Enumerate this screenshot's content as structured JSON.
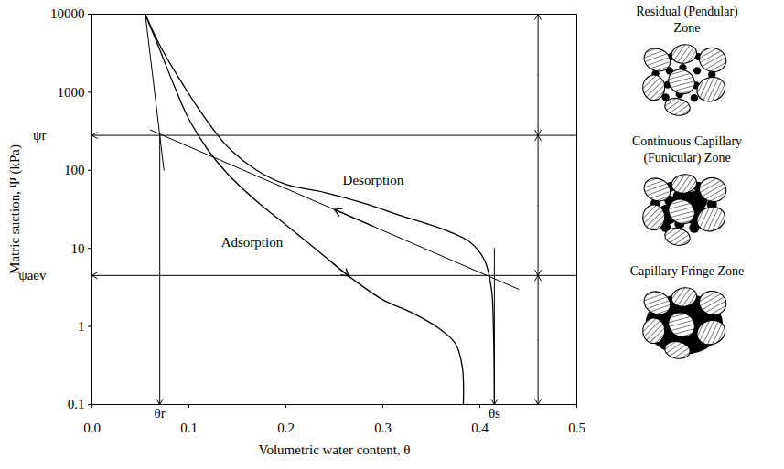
{
  "chart_data": {
    "type": "line",
    "xlabel": "Volumetric water content, θ",
    "ylabel": "Matric suction, Ψ (kPa)",
    "xlim": [
      0,
      0.5
    ],
    "ylim": [
      0.1,
      10000
    ],
    "xticks": [
      {
        "value": 0,
        "label": "0.0"
      },
      0.1,
      0.2,
      0.3,
      0.4,
      0.5
    ],
    "yticks": [
      0.1,
      1,
      10,
      100,
      1000,
      10000
    ],
    "log": "y",
    "grid": false,
    "series": [
      {
        "name": "Desorption",
        "color": "#000000",
        "x": [
          0.415,
          0.414,
          0.412,
          0.405,
          0.39,
          0.36,
          0.32,
          0.28,
          0.24,
          0.2,
          0.17,
          0.14,
          0.115,
          0.09,
          0.07,
          0.055
        ],
        "values": [
          0.1,
          1,
          3,
          7,
          12,
          18,
          26,
          38,
          52,
          66,
          100,
          200,
          500,
          1500,
          4000,
          10000
        ],
        "label_x": 0.29,
        "label_y": 75,
        "arrow_from": [
          0.29,
          19.2
        ],
        "arrow_to": [
          0.25,
          31.5
        ]
      },
      {
        "name": "Adsorption",
        "color": "#000000",
        "x": [
          0.383,
          0.382,
          0.375,
          0.355,
          0.33,
          0.3,
          0.265,
          0.23,
          0.2,
          0.17,
          0.14,
          0.12,
          0.1,
          0.085,
          0.07,
          0.055
        ],
        "values": [
          0.1,
          0.3,
          0.6,
          1,
          1.5,
          2.2,
          4.4,
          10,
          20,
          40,
          90,
          180,
          450,
          1200,
          3500,
          10000
        ],
        "label_x": 0.165,
        "label_y": 12,
        "arrow_from": [
          0.245,
          7.0
        ],
        "arrow_to": [
          0.265,
          4.4
        ]
      }
    ],
    "tangent_lines": [
      {
        "x": [
          0.06,
          0.44
        ],
        "values": [
          330,
          3
        ]
      },
      {
        "x": [
          0.055,
          0.0743
        ],
        "values": [
          10000,
          100
        ]
      }
    ],
    "psi_lines": [
      {
        "label": "ψr",
        "value": 280
      },
      {
        "label": "ψaev",
        "value": 4.5
      }
    ],
    "theta_lines": [
      {
        "label": "θr",
        "value": 0.07,
        "from": 280
      },
      {
        "label": "θs",
        "value": 0.415,
        "from": 10
      }
    ],
    "zones": [
      {
        "label": "Residual (Pendular) Zone",
        "x": 0.46,
        "from": 280,
        "to": 10000
      },
      {
        "label": "Continuous Capillary (Funicular) Zone",
        "x": 0.46,
        "from": 4.5,
        "to": 280
      },
      {
        "label": "Capillary Fringe Zone",
        "x": 0.46,
        "from": 0.1,
        "to": 4.5
      }
    ]
  }
}
